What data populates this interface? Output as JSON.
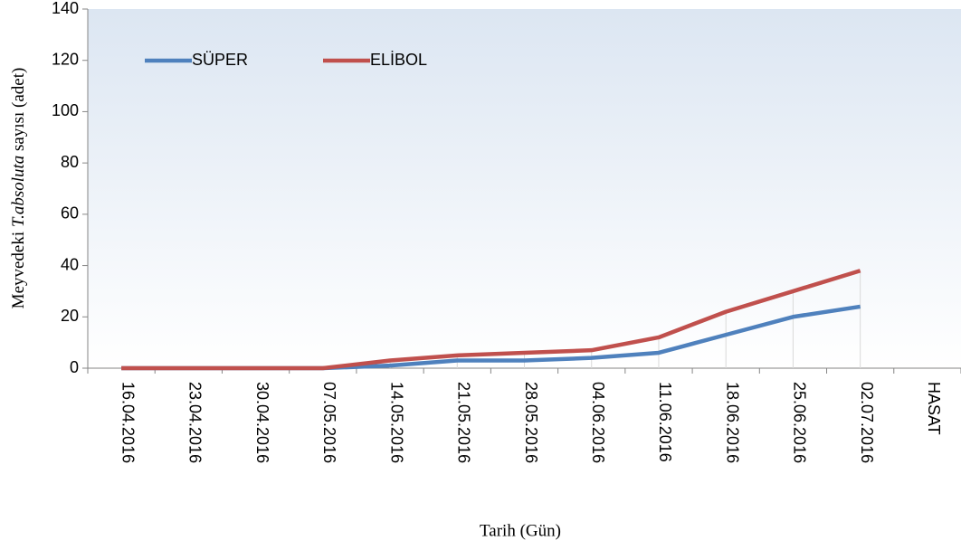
{
  "chart_data": {
    "type": "line",
    "y_label": {
      "before": "Meyvedeki ",
      "italic": "T.absoluta",
      "after": " sayısı (adet)"
    },
    "x_label": "Tarih (Gün)",
    "categories": [
      "16.04.2016",
      "23.04.2016",
      "30.04.2016",
      "07.05.2016",
      "14.05.2016",
      "21.05.2016",
      "28.05.2016",
      "04.06.2016",
      "11.06.2016",
      "18.06.2016",
      "25.06.2016",
      "02.07.2016",
      "HASAT"
    ],
    "series": [
      {
        "name": "SÜPER",
        "color": "#4f81bd",
        "values": [
          0,
          0,
          0,
          0,
          1,
          3,
          3,
          4,
          6,
          13,
          20,
          24,
          null
        ]
      },
      {
        "name": "ELİBOL",
        "color": "#c0504d",
        "values": [
          0,
          0,
          0,
          0,
          3,
          5,
          6,
          7,
          12,
          22,
          30,
          38,
          null
        ]
      }
    ],
    "ylim": [
      0,
      140
    ],
    "yticks": [
      0,
      20,
      40,
      60,
      80,
      100,
      120,
      140
    ]
  }
}
